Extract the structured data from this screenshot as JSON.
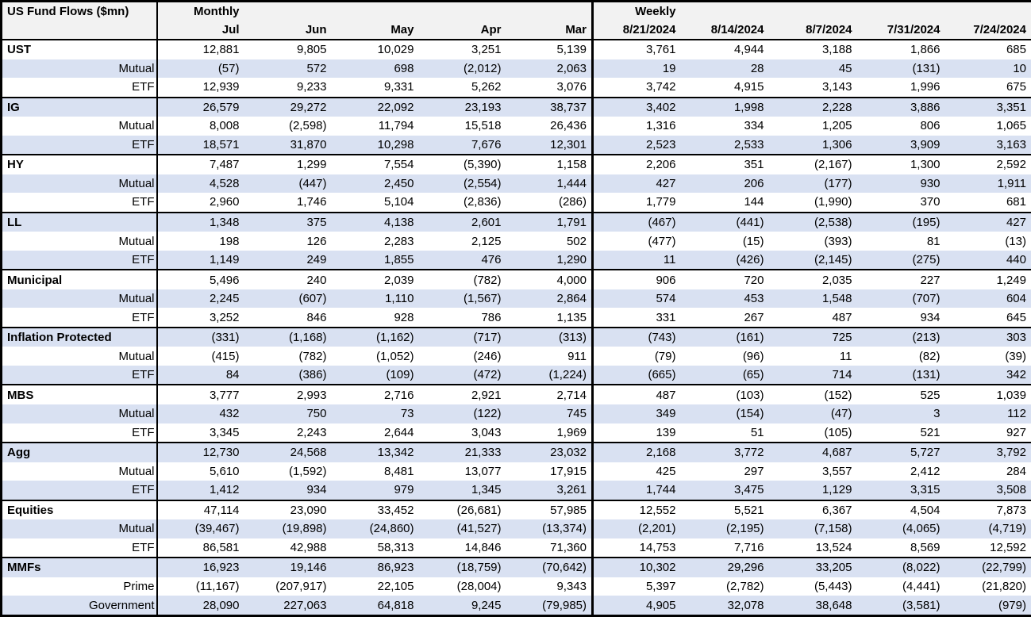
{
  "style": {
    "row_shade_color": "#d9e1f2",
    "header_bg_color": "#f2f2f2",
    "border_color": "#000000"
  },
  "chart_data": {
    "type": "table",
    "corner_title": "US Fund Flows ($mn)",
    "section_labels": {
      "monthly": "Monthly",
      "weekly": "Weekly"
    },
    "monthly_columns": [
      "Jul",
      "Jun",
      "May",
      "Apr",
      "Mar"
    ],
    "weekly_columns": [
      "8/21/2024",
      "8/14/2024",
      "8/7/2024",
      "7/31/2024",
      "7/24/2024"
    ],
    "number_format": "negatives in parentheses, thousands separated by commas",
    "groups": [
      {
        "category": "UST",
        "total": [
          12881,
          9805,
          10029,
          3251,
          5139,
          3761,
          4944,
          3188,
          1866,
          685
        ],
        "subrows": [
          {
            "label": "Mutual",
            "values": [
              -57,
              572,
              698,
              -2012,
              2063,
              19,
              28,
              45,
              -131,
              10
            ]
          },
          {
            "label": "ETF",
            "values": [
              12939,
              9233,
              9331,
              5262,
              3076,
              3742,
              4915,
              3143,
              1996,
              675
            ]
          }
        ]
      },
      {
        "category": "IG",
        "total": [
          26579,
          29272,
          22092,
          23193,
          38737,
          3402,
          1998,
          2228,
          3886,
          3351
        ],
        "subrows": [
          {
            "label": "Mutual",
            "values": [
              8008,
              -2598,
              11794,
              15518,
              26436,
              1316,
              334,
              1205,
              806,
              1065
            ]
          },
          {
            "label": "ETF",
            "values": [
              18571,
              31870,
              10298,
              7676,
              12301,
              2523,
              2533,
              1306,
              3909,
              3163
            ]
          }
        ]
      },
      {
        "category": "HY",
        "total": [
          7487,
          1299,
          7554,
          -5390,
          1158,
          2206,
          351,
          -2167,
          1300,
          2592
        ],
        "subrows": [
          {
            "label": "Mutual",
            "values": [
              4528,
              -447,
              2450,
              -2554,
              1444,
              427,
              206,
              -177,
              930,
              1911
            ]
          },
          {
            "label": "ETF",
            "values": [
              2960,
              1746,
              5104,
              -2836,
              -286,
              1779,
              144,
              -1990,
              370,
              681
            ]
          }
        ]
      },
      {
        "category": "LL",
        "total": [
          1348,
          375,
          4138,
          2601,
          1791,
          -467,
          -441,
          -2538,
          -195,
          427
        ],
        "subrows": [
          {
            "label": "Mutual",
            "values": [
              198,
              126,
              2283,
              2125,
              502,
              -477,
              -15,
              -393,
              81,
              -13
            ]
          },
          {
            "label": "ETF",
            "values": [
              1149,
              249,
              1855,
              476,
              1290,
              11,
              -426,
              -2145,
              -275,
              440
            ]
          }
        ]
      },
      {
        "category": "Municipal",
        "total": [
          5496,
          240,
          2039,
          -782,
          4000,
          906,
          720,
          2035,
          227,
          1249
        ],
        "subrows": [
          {
            "label": "Mutual",
            "values": [
              2245,
              -607,
              1110,
              -1567,
              2864,
              574,
              453,
              1548,
              -707,
              604
            ]
          },
          {
            "label": "ETF",
            "values": [
              3252,
              846,
              928,
              786,
              1135,
              331,
              267,
              487,
              934,
              645
            ]
          }
        ]
      },
      {
        "category": "Inflation Protected",
        "total": [
          -331,
          -1168,
          -1162,
          -717,
          -313,
          -743,
          -161,
          725,
          -213,
          303
        ],
        "subrows": [
          {
            "label": "Mutual",
            "values": [
              -415,
              -782,
              -1052,
              -246,
              911,
              -79,
              -96,
              11,
              -82,
              -39
            ]
          },
          {
            "label": "ETF",
            "values": [
              84,
              -386,
              -109,
              -472,
              -1224,
              -665,
              -65,
              714,
              -131,
              342
            ]
          }
        ]
      },
      {
        "category": "MBS",
        "total": [
          3777,
          2993,
          2716,
          2921,
          2714,
          487,
          -103,
          -152,
          525,
          1039
        ],
        "subrows": [
          {
            "label": "Mutual",
            "values": [
              432,
              750,
              73,
              -122,
              745,
              349,
              -154,
              -47,
              3,
              112
            ]
          },
          {
            "label": "ETF",
            "values": [
              3345,
              2243,
              2644,
              3043,
              1969,
              139,
              51,
              -105,
              521,
              927
            ]
          }
        ]
      },
      {
        "category": "Agg",
        "total": [
          12730,
          24568,
          13342,
          21333,
          23032,
          2168,
          3772,
          4687,
          5727,
          3792
        ],
        "subrows": [
          {
            "label": "Mutual",
            "values": [
              5610,
              -1592,
              8481,
              13077,
              17915,
              425,
              297,
              3557,
              2412,
              284
            ]
          },
          {
            "label": "ETF",
            "values": [
              1412,
              934,
              979,
              1345,
              3261,
              1744,
              3475,
              1129,
              3315,
              3508
            ]
          }
        ]
      },
      {
        "category": "Equities",
        "total": [
          47114,
          23090,
          33452,
          -26681,
          57985,
          12552,
          5521,
          6367,
          4504,
          7873
        ],
        "subrows": [
          {
            "label": "Mutual",
            "values": [
              -39467,
              -19898,
              -24860,
              -41527,
              -13374,
              -2201,
              -2195,
              -7158,
              -4065,
              -4719
            ]
          },
          {
            "label": "ETF",
            "values": [
              86581,
              42988,
              58313,
              14846,
              71360,
              14753,
              7716,
              13524,
              8569,
              12592
            ]
          }
        ]
      },
      {
        "category": "MMFs",
        "total": [
          16923,
          19146,
          86923,
          -18759,
          -70642,
          10302,
          29296,
          33205,
          -8022,
          -22799
        ],
        "subrows": [
          {
            "label": "Prime",
            "values": [
              -11167,
              -207917,
              22105,
              -28004,
              9343,
              5397,
              -2782,
              -5443,
              -4441,
              -21820
            ]
          },
          {
            "label": "Government",
            "values": [
              28090,
              227063,
              64818,
              9245,
              -79985,
              4905,
              32078,
              38648,
              -3581,
              -979
            ]
          }
        ]
      }
    ]
  }
}
